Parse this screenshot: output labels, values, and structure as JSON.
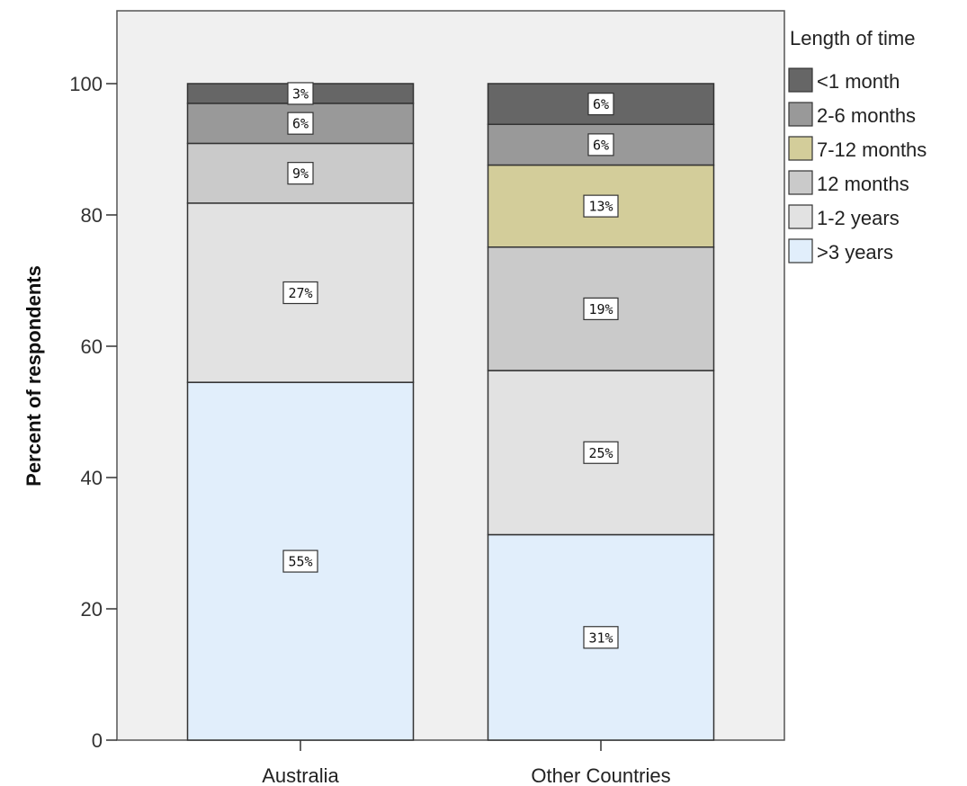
{
  "chart_data": {
    "type": "bar",
    "stacked": true,
    "categories": [
      "Australia",
      "Other Countries"
    ],
    "ylabel": "Percent of respondents",
    "xlabel": "",
    "ylim": [
      0,
      110
    ],
    "yticks": [
      0,
      20,
      40,
      60,
      80,
      100
    ],
    "legend_title": "Length of time",
    "legend_position": "right",
    "series": [
      {
        "name": ">3 years",
        "color": "#e1eefb",
        "values": [
          54.5,
          31.3
        ],
        "labels": [
          "55%",
          "31%"
        ]
      },
      {
        "name": "1-2 years",
        "color": "#e2e2e2",
        "values": [
          27.3,
          25.0
        ],
        "labels": [
          "27%",
          "25%"
        ]
      },
      {
        "name": "12 months",
        "color": "#cacaca",
        "values": [
          9.1,
          18.8
        ],
        "labels": [
          "9%",
          "19%"
        ]
      },
      {
        "name": "7-12 months",
        "color": "#d3cd9a",
        "values": [
          0,
          12.5
        ],
        "labels": [
          "",
          "13%"
        ]
      },
      {
        "name": "2-6 months",
        "color": "#999999",
        "values": [
          6.1,
          6.2
        ],
        "labels": [
          "6%",
          "6%"
        ]
      },
      {
        "name": "<1 month",
        "color": "#666666",
        "values": [
          3.0,
          6.2
        ],
        "labels": [
          "3%",
          "6%"
        ]
      }
    ],
    "legend_order": [
      "<1 month",
      "2-6 months",
      "7-12 months",
      "12 months",
      "1-2 years",
      ">3 years"
    ]
  }
}
